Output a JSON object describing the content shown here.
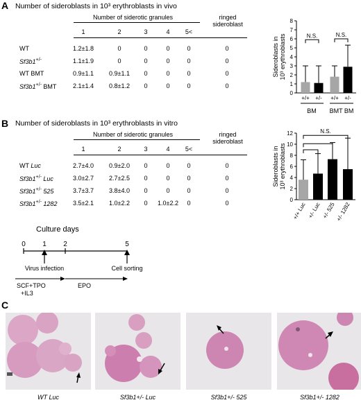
{
  "panelA": {
    "letter": "A",
    "title": "Number of sideroblasts in 10³ erythroblasts in vivo",
    "table": {
      "group_header": "Number of siderotic granules",
      "ringed_header": [
        "ringed",
        "sideroblast"
      ],
      "columns": [
        "1",
        "2",
        "3",
        "4",
        "5<"
      ],
      "rows": [
        {
          "label": "WT",
          "values": [
            "1.2±1.8",
            "0",
            "0",
            "0",
            "0",
            "0"
          ]
        },
        {
          "label": "Sf3b1+/-",
          "values": [
            "1.1±1.9",
            "0",
            "0",
            "0",
            "0",
            "0"
          ]
        },
        {
          "label": "WT BMT",
          "values": [
            "0.9±1.1",
            "0.9±1.1",
            "0",
            "0",
            "0",
            "0"
          ]
        },
        {
          "label": "Sf3b1+/- BMT",
          "values": [
            "2.1±1.4",
            "0.8±1.2",
            "0",
            "0",
            "0",
            "0"
          ]
        }
      ]
    }
  },
  "panelB": {
    "letter": "B",
    "title": "Number of sideroblasts in 10³ erythroblasts in vitro",
    "table": {
      "group_header": "Number of siderotic granules",
      "ringed_header": [
        "ringed",
        "sideroblast"
      ],
      "columns": [
        "1",
        "2",
        "3",
        "4",
        "5<"
      ],
      "rows": [
        {
          "label": "WT Luc",
          "values": [
            "2.7±4.0",
            "0.9±2.0",
            "0",
            "0",
            "0",
            "0"
          ]
        },
        {
          "label": "Sf3b1+/- Luc",
          "values": [
            "3.0±2.7",
            "2.7±2.5",
            "0",
            "0",
            "0",
            "0"
          ]
        },
        {
          "label": "Sf3b1+/- 525",
          "values": [
            "3.7±3.7",
            "3.8±4.0",
            "0",
            "0",
            "0",
            "0"
          ]
        },
        {
          "label": "Sf3b1+/- 1282",
          "values": [
            "3.5±2.1",
            "1.0±2.2",
            "0",
            "1.0±2.2",
            "0",
            "0"
          ]
        }
      ]
    },
    "timeline": {
      "title": "Culture days",
      "days": [
        "0",
        "1",
        "2",
        "5"
      ],
      "events": [
        "Virus infection",
        "Cell sorting"
      ],
      "media": [
        "SCF+TPO",
        "+IL3",
        "EPO"
      ]
    }
  },
  "panelC": {
    "letter": "C",
    "captions": [
      "WT Luc",
      "Sf3b1+/- Luc",
      "Sf3b1+/- 525",
      "Sf3b1+/- 1282"
    ]
  },
  "chart_data": [
    {
      "type": "bar",
      "ylabel": "Sideroblasts in 10³ erythroblasts",
      "ylim": [
        0,
        8
      ],
      "yticks": [
        "0",
        "1",
        "2",
        "3",
        "4",
        "5",
        "6",
        "7",
        "8"
      ],
      "categories": [
        "+/+",
        "+/-",
        "+/+",
        "+/-"
      ],
      "groups": [
        "BM",
        "BMT BM"
      ],
      "values": [
        1.2,
        1.1,
        1.8,
        2.9
      ],
      "errors": [
        1.8,
        1.9,
        1.2,
        2.4
      ],
      "bar_colors": [
        "#a6a6a6",
        "#000000",
        "#a6a6a6",
        "#000000"
      ],
      "annotations": [
        "N.S.",
        "N.S."
      ]
    },
    {
      "type": "bar",
      "ylabel": "Sideroblasts in 10³ erythroblasts",
      "ylim": [
        0,
        12
      ],
      "yticks": [
        "0",
        "2",
        "4",
        "6",
        "8",
        "10",
        "12"
      ],
      "categories": [
        "+/+ Luc",
        "+/- Luc",
        "+/- 525",
        "+/- 1282"
      ],
      "values": [
        3.6,
        4.7,
        7.3,
        5.5
      ],
      "errors": [
        3.6,
        3.6,
        3.0,
        5.6
      ],
      "bar_colors": [
        "#a6a6a6",
        "#000000",
        "#000000",
        "#000000"
      ],
      "annotations": [
        "N.S."
      ]
    }
  ]
}
